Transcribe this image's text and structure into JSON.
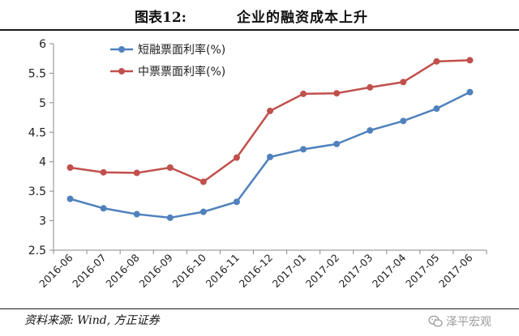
{
  "header": {
    "label": "图表12:",
    "title": "企业的融资成本上升"
  },
  "footer": {
    "source": "资料来源: Wind, 方正证券"
  },
  "watermark": {
    "text": "泽平宏观",
    "icon": "wechat-icon"
  },
  "chart_data": {
    "type": "line",
    "title": "",
    "xlabel": "",
    "ylabel": "",
    "categories": [
      "2016-06",
      "2016-07",
      "2016-08",
      "2016-09",
      "2016-10",
      "2016-11",
      "2016-12",
      "2017-01",
      "2017-02",
      "2017-03",
      "2017-04",
      "2017-05",
      "2017-06"
    ],
    "ylim": [
      2.5,
      6
    ],
    "yticks": [
      "2.5",
      "3",
      "3.5",
      "4",
      "4.5",
      "5",
      "5.5",
      "6"
    ],
    "legend_position": "top-left",
    "grid": false,
    "series": [
      {
        "name": "短融票面利率(%)",
        "color": "#4f81bd",
        "values": [
          3.37,
          3.21,
          3.11,
          3.05,
          3.15,
          3.32,
          4.08,
          4.21,
          4.3,
          4.53,
          4.69,
          4.9,
          5.18
        ]
      },
      {
        "name": "中票票面利率(%)",
        "color": "#c0504d",
        "values": [
          3.9,
          3.82,
          3.81,
          3.9,
          3.66,
          4.07,
          4.86,
          5.15,
          5.16,
          5.26,
          5.35,
          5.7,
          5.72
        ]
      }
    ]
  }
}
